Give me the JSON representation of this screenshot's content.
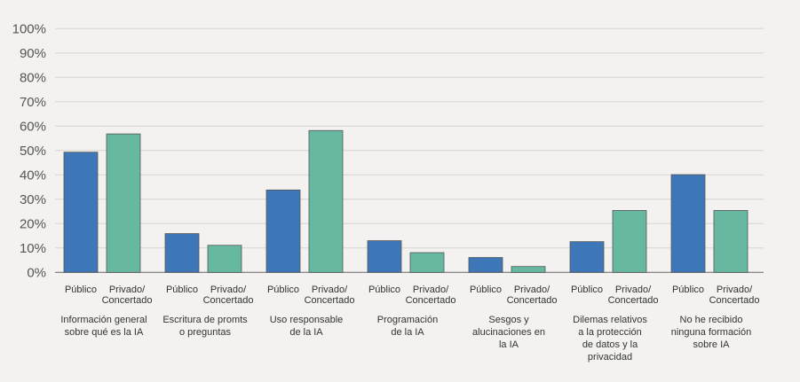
{
  "chart_data": {
    "type": "bar",
    "title": "",
    "xlabel": "",
    "ylabel": "",
    "ylim": [
      0,
      100
    ],
    "yticks": [
      "0%",
      "10%",
      "20%",
      "30%",
      "40%",
      "50%",
      "60%",
      "70%",
      "80%",
      "90%",
      "100%"
    ],
    "grid": true,
    "sub_labels": [
      "Público",
      "Privado/\nConcertado"
    ],
    "categories": [
      "Información general\nsobre qué es la IA",
      "Escritura de promts\no preguntas",
      "Uso responsable\nde la IA",
      "Programación\nde la IA",
      "Sesgos y\nalucinaciones en\nla IA",
      "Dilemas relativos\na la protección\nde datos y la\nprivacidad",
      "No he recibido\nninguna formación\nsobre IA"
    ],
    "series": [
      {
        "name": "Público",
        "color": "#3d77b8",
        "values": [
          49.3,
          15.9,
          33.8,
          13.0,
          6.1,
          12.6,
          40.1
        ]
      },
      {
        "name": "Privado/Concertado",
        "color": "#66b9a0",
        "values": [
          56.8,
          11.1,
          58.2,
          8.1,
          2.4,
          25.4,
          25.4
        ]
      }
    ]
  }
}
